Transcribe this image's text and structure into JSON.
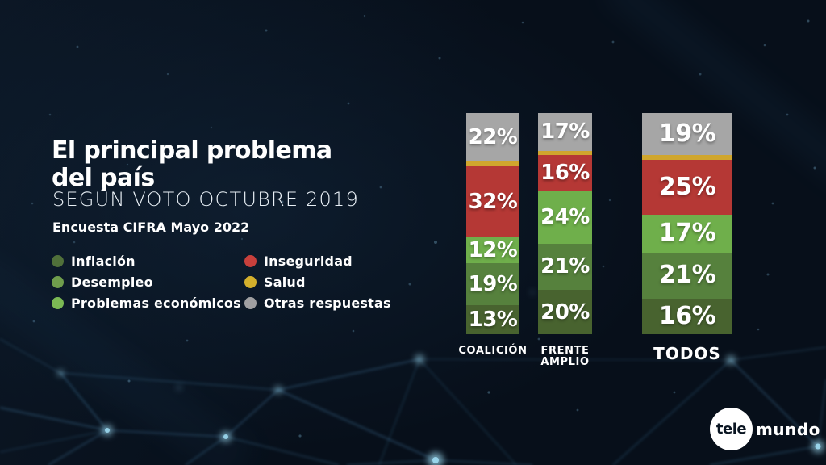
{
  "title": {
    "line1": "El principal problema",
    "line2": "del país"
  },
  "subtitle": "SEGÚN VOTO OCTUBRE 2019",
  "source": "Encuesta CIFRA Mayo 2022",
  "legend": {
    "items": [
      {
        "label": "Inflación",
        "color": "#50703A"
      },
      {
        "label": "Desempleo",
        "color": "#6F9D4C"
      },
      {
        "label": "Problemas económicos",
        "color": "#7BB954"
      },
      {
        "label": "Inseguridad",
        "color": "#C8403C"
      },
      {
        "label": "Salud",
        "color": "#D4B02C"
      },
      {
        "label": "Otras respuestas",
        "color": "#A0A0A2"
      }
    ]
  },
  "chart_data": {
    "type": "bar",
    "variant": "stacked-percentage-columns",
    "unit": "%",
    "title": "El principal problema del país",
    "subtitle": "SEGÚN VOTO OCTUBRE 2019",
    "source": "Encuesta CIFRA Mayo 2022",
    "legend_position": "left",
    "categories": [
      {
        "label_lines": [
          "COALICIÓN"
        ]
      },
      {
        "label_lines": [
          "FRENTE",
          "AMPLIO"
        ]
      },
      {
        "label_lines": [
          "TODOS"
        ]
      }
    ],
    "series_top_to_bottom": [
      {
        "name": "Otras respuestas",
        "color": "#A6A6A6",
        "values": [
          22,
          17,
          19
        ],
        "labels": [
          "22%",
          "17%",
          "19%"
        ]
      },
      {
        "name": "Salud",
        "color": "#D0A62D",
        "values": [
          2,
          2,
          2
        ],
        "labels": [
          "",
          "",
          ""
        ]
      },
      {
        "name": "Inseguridad",
        "color": "#B53835",
        "values": [
          32,
          16,
          25
        ],
        "labels": [
          "32%",
          "16%",
          "25%"
        ]
      },
      {
        "name": "Problemas económicos",
        "color": "#6FAF4B",
        "values": [
          12,
          24,
          17
        ],
        "labels": [
          "12%",
          "24%",
          "17%"
        ]
      },
      {
        "name": "Desempleo",
        "color": "#56813D",
        "values": [
          19,
          21,
          21
        ],
        "labels": [
          "19%",
          "21%",
          "21%"
        ]
      },
      {
        "name": "Inflación",
        "color": "#48632F",
        "values": [
          13,
          20,
          16
        ],
        "labels": [
          "13%",
          "20%",
          "16%"
        ]
      }
    ]
  },
  "logo": {
    "circle_text": "tele",
    "wordmark": "mundo"
  }
}
